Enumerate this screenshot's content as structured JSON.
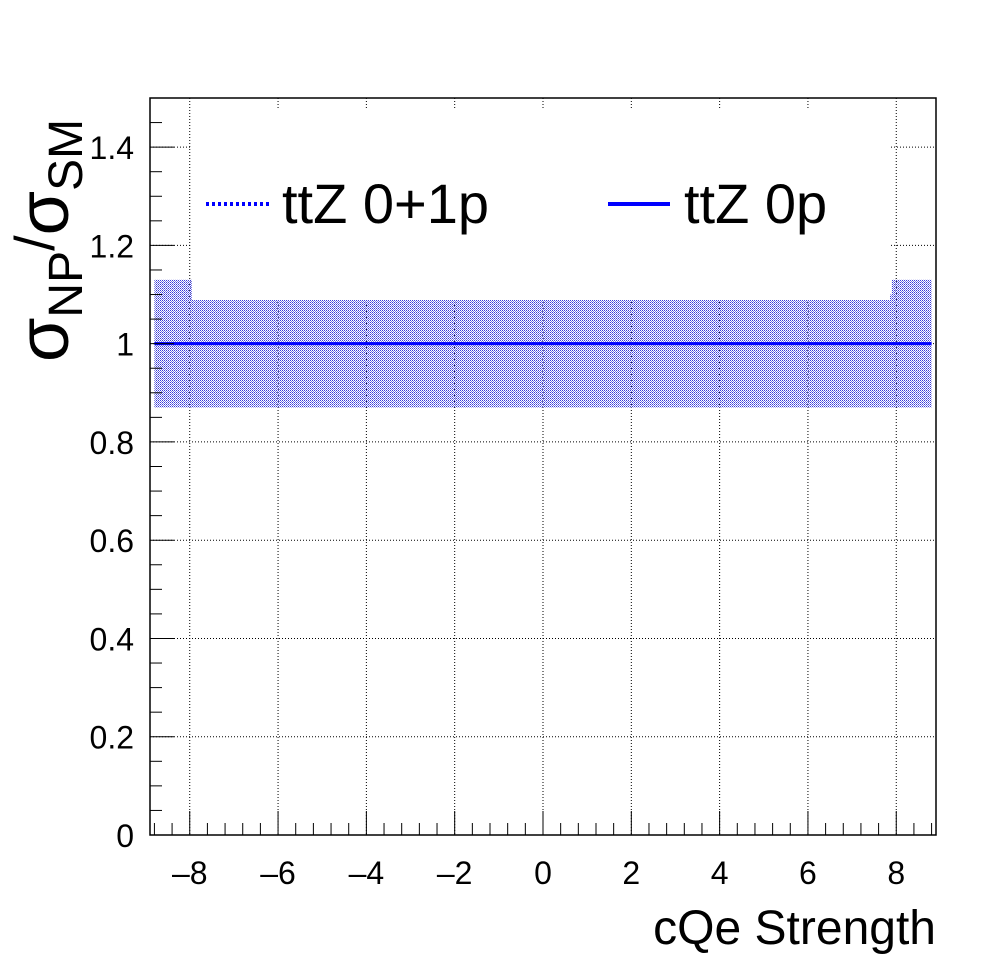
{
  "chart_data": {
    "type": "line",
    "xlabel": "cQe Strength",
    "ylabel": {
      "main": "σ",
      "sub1": "NP",
      "slash": "/",
      "main2": "σ",
      "sub2": "SM"
    },
    "xlim": [
      -8.9,
      8.9
    ],
    "ylim": [
      0,
      1.5
    ],
    "xticks": [
      -8,
      -6,
      -4,
      -2,
      0,
      2,
      4,
      6,
      8
    ],
    "xtick_labels": [
      "–8",
      "–6",
      "–4",
      "–2",
      "0",
      "2",
      "4",
      "6",
      "8"
    ],
    "yticks": [
      0,
      0.2,
      0.4,
      0.6,
      0.8,
      1,
      1.2,
      1.4
    ],
    "ytick_labels": [
      "0",
      "0.2",
      "0.4",
      "0.6",
      "0.8",
      "1",
      "1.2",
      "1.4"
    ],
    "grid": true,
    "legend_position": "top",
    "series": [
      {
        "name": "ttZ 0+1p",
        "style": "dotted",
        "color": "#0000ff",
        "x": [
          -8.8,
          8.8
        ],
        "y": [
          1.0,
          1.0
        ],
        "band": [
          {
            "x0": -8.8,
            "x1": -7.9,
            "lo": 0.87,
            "hi": 1.13
          },
          {
            "x0": -7.9,
            "x1": 7.9,
            "lo": 0.87,
            "hi": 1.1
          },
          {
            "x0": 7.9,
            "x1": 8.8,
            "lo": 0.87,
            "hi": 1.13
          }
        ]
      },
      {
        "name": "ttZ 0p",
        "style": "solid",
        "color": "#0000ff",
        "x": [
          -8.8,
          8.8
        ],
        "y": [
          1.0,
          1.0
        ]
      }
    ]
  }
}
